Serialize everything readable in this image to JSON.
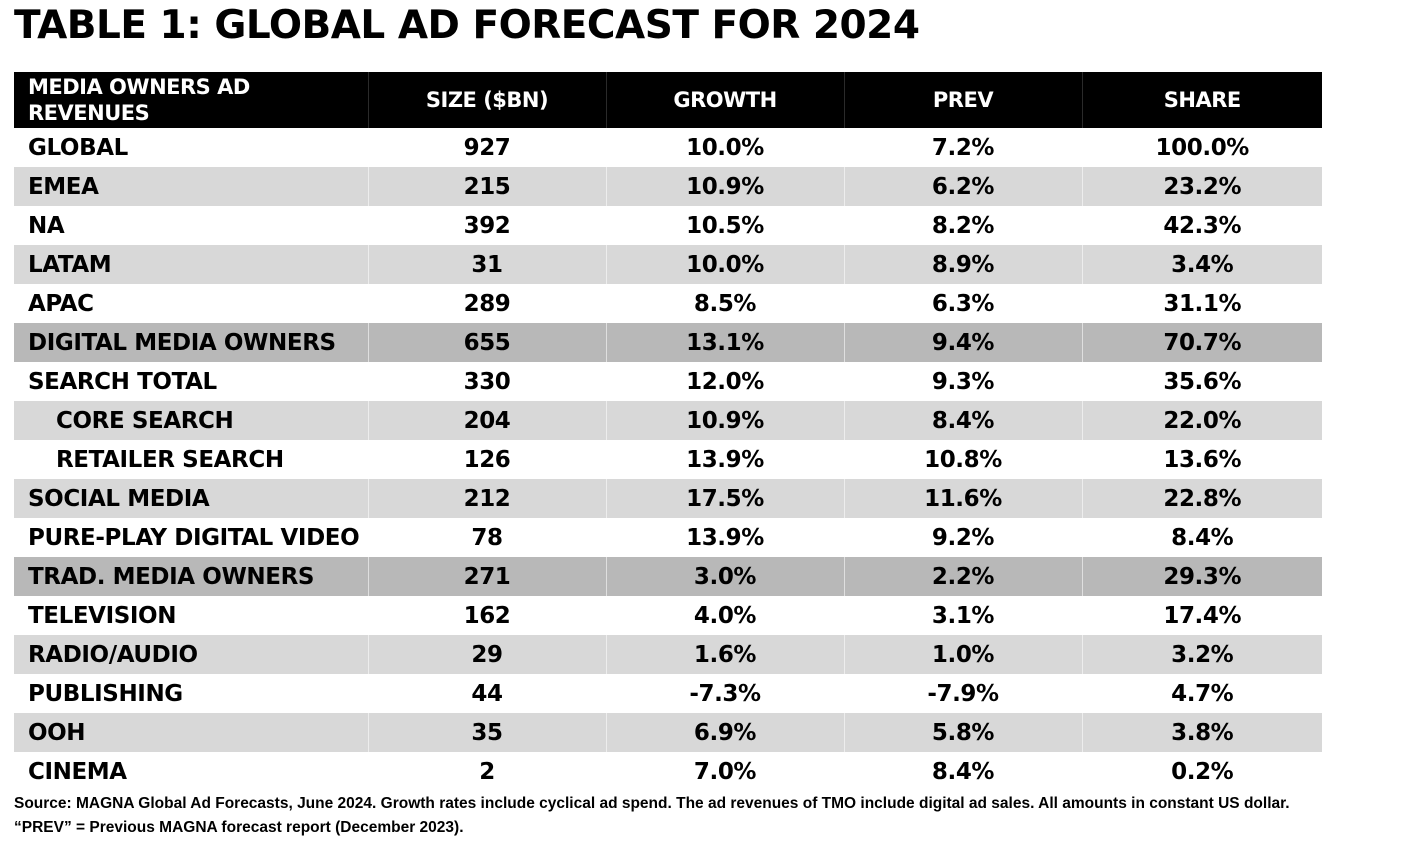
{
  "title": "TABLE 1: GLOBAL AD FORECAST FOR 2024",
  "chart_data": {
    "type": "table",
    "title": "TABLE 1: GLOBAL AD FORECAST FOR 2024",
    "columns": [
      "MEDIA OWNERS AD REVENUES",
      "SIZE ($BN)",
      "GROWTH",
      "PREV",
      "SHARE"
    ],
    "rows": [
      {
        "label": "GLOBAL",
        "size": "927",
        "growth": "10.0%",
        "prev": "7.2%",
        "share": "100.0%",
        "indent": false,
        "shade": "none"
      },
      {
        "label": "EMEA",
        "size": "215",
        "growth": "10.9%",
        "prev": "6.2%",
        "share": "23.2%",
        "indent": false,
        "shade": "light"
      },
      {
        "label": "NA",
        "size": "392",
        "growth": "10.5%",
        "prev": "8.2%",
        "share": "42.3%",
        "indent": false,
        "shade": "none"
      },
      {
        "label": "LATAM",
        "size": "31",
        "growth": "10.0%",
        "prev": "8.9%",
        "share": "3.4%",
        "indent": false,
        "shade": "light"
      },
      {
        "label": "APAC",
        "size": "289",
        "growth": "8.5%",
        "prev": "6.3%",
        "share": "31.1%",
        "indent": false,
        "shade": "none"
      },
      {
        "label": "DIGITAL MEDIA OWNERS",
        "size": "655",
        "growth": "13.1%",
        "prev": "9.4%",
        "share": "70.7%",
        "indent": false,
        "shade": "dark"
      },
      {
        "label": "SEARCH TOTAL",
        "size": "330",
        "growth": "12.0%",
        "prev": "9.3%",
        "share": "35.6%",
        "indent": false,
        "shade": "none"
      },
      {
        "label": "CORE SEARCH",
        "size": "204",
        "growth": "10.9%",
        "prev": "8.4%",
        "share": "22.0%",
        "indent": true,
        "shade": "light"
      },
      {
        "label": "RETAILER SEARCH",
        "size": "126",
        "growth": "13.9%",
        "prev": "10.8%",
        "share": "13.6%",
        "indent": true,
        "shade": "none"
      },
      {
        "label": "SOCIAL MEDIA",
        "size": "212",
        "growth": "17.5%",
        "prev": "11.6%",
        "share": "22.8%",
        "indent": false,
        "shade": "light"
      },
      {
        "label": "PURE-PLAY DIGITAL VIDEO",
        "size": "78",
        "growth": "13.9%",
        "prev": "9.2%",
        "share": "8.4%",
        "indent": false,
        "shade": "none"
      },
      {
        "label": "TRAD. MEDIA OWNERS",
        "size": "271",
        "growth": "3.0%",
        "prev": "2.2%",
        "share": "29.3%",
        "indent": false,
        "shade": "dark"
      },
      {
        "label": "TELEVISION",
        "size": "162",
        "growth": "4.0%",
        "prev": "3.1%",
        "share": "17.4%",
        "indent": false,
        "shade": "none"
      },
      {
        "label": "RADIO/AUDIO",
        "size": "29",
        "growth": "1.6%",
        "prev": "1.0%",
        "share": "3.2%",
        "indent": false,
        "shade": "light"
      },
      {
        "label": "PUBLISHING",
        "size": "44",
        "growth": "-7.3%",
        "prev": "-7.9%",
        "share": "4.7%",
        "indent": false,
        "shade": "none"
      },
      {
        "label": "OOH",
        "size": "35",
        "growth": "6.9%",
        "prev": "5.8%",
        "share": "3.8%",
        "indent": false,
        "shade": "light"
      },
      {
        "label": "CINEMA",
        "size": "2",
        "growth": "7.0%",
        "prev": "8.4%",
        "share": "0.2%",
        "indent": false,
        "shade": "none"
      }
    ]
  },
  "colors": {
    "header_bg": "#000000",
    "header_text": "#ffffff",
    "shade_light": "#d8d8d8",
    "shade_dark": "#b8b8b8"
  },
  "footnote": {
    "line1": "Source: MAGNA Global Ad Forecasts, June 2024. Growth rates include cyclical ad spend. The ad revenues of TMO include digital ad sales. All amounts in constant US dollar.",
    "line2": "“PREV” = Previous MAGNA forecast report (December 2023)."
  }
}
